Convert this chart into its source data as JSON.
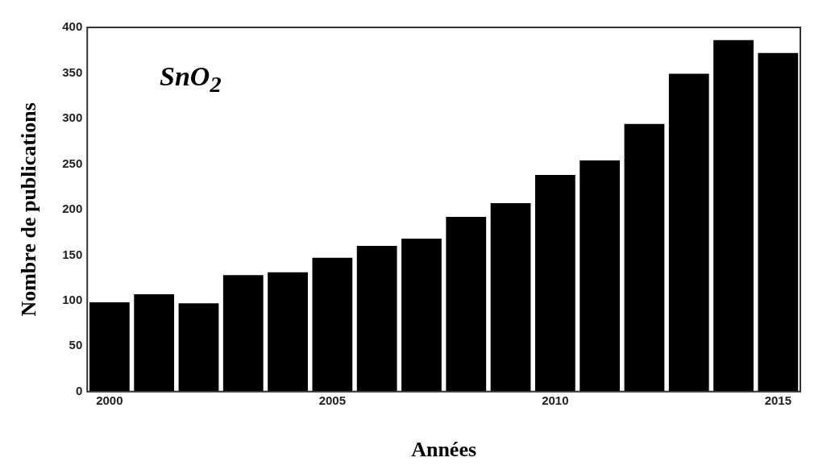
{
  "chart_data": {
    "type": "bar",
    "xlabel": "Années",
    "ylabel": "Nombre de publications",
    "annotations": [
      "SnO$_{2}$"
    ],
    "x": [
      2000,
      2001,
      2002,
      2003,
      2004,
      2005,
      2006,
      2007,
      2008,
      2009,
      2010,
      2011,
      2012,
      2013,
      2014,
      2015
    ],
    "values": [
      98,
      107,
      97,
      128,
      131,
      147,
      160,
      168,
      192,
      207,
      238,
      254,
      294,
      349,
      386,
      372
    ],
    "color": "#000000",
    "xlim": [
      1999.5,
      2015.5
    ],
    "xticks": [
      2000,
      2005,
      2010,
      2015
    ],
    "ylim": [
      0,
      400
    ],
    "yticks": [
      0,
      50,
      100,
      150,
      200,
      250,
      300,
      350,
      400
    ],
    "grid": false,
    "legend": false
  }
}
